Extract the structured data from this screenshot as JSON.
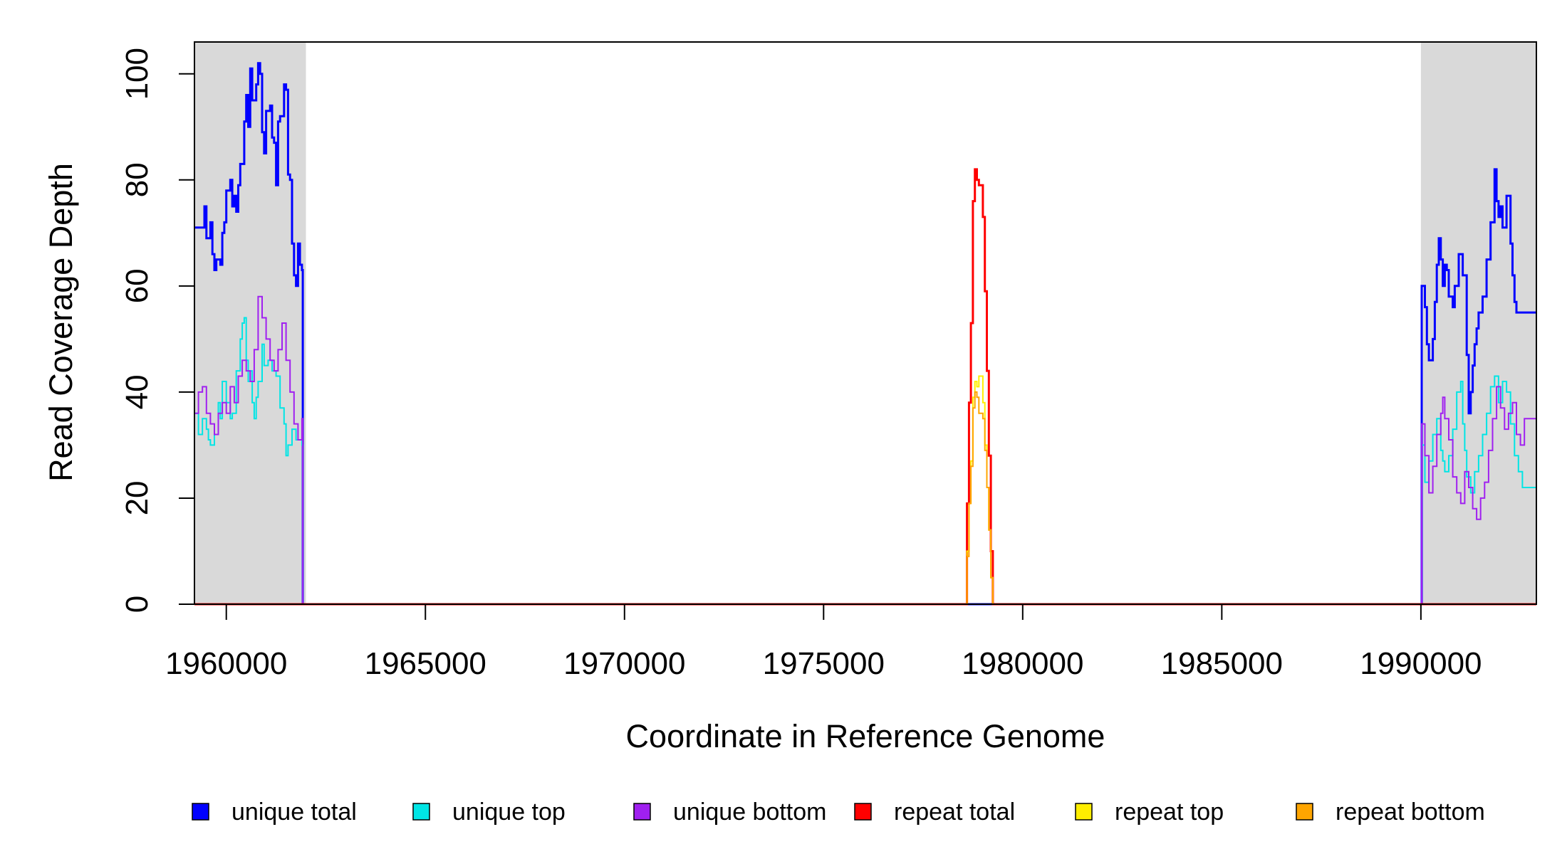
{
  "chart_data": {
    "type": "line",
    "step": true,
    "xlabel": "Coordinate in Reference Genome",
    "ylabel": "Read Coverage Depth",
    "xlim": [
      1959200,
      1992900
    ],
    "ylim": [
      0,
      106
    ],
    "x_ticks": [
      1960000,
      1965000,
      1970000,
      1975000,
      1980000,
      1985000,
      1990000
    ],
    "x_tick_labels": [
      "1960000",
      "1965000",
      "1970000",
      "1975000",
      "1980000",
      "1985000",
      "1990000"
    ],
    "y_ticks": [
      0,
      20,
      40,
      60,
      80,
      100
    ],
    "y_tick_labels": [
      "0",
      "20",
      "40",
      "60",
      "80",
      "100"
    ],
    "grid": false,
    "legend_position": "bottom",
    "shaded_regions": [
      {
        "x0": 1959200,
        "x1": 1962000,
        "color": "#d9d9d9"
      },
      {
        "x0": 1990000,
        "x1": 1992900,
        "color": "#d9d9d9"
      }
    ],
    "series": [
      {
        "name": "unique total",
        "color": "#0000ff",
        "width": 3,
        "points": [
          [
            1959200,
            71
          ],
          [
            1959350,
            71
          ],
          [
            1959450,
            75
          ],
          [
            1959500,
            69
          ],
          [
            1959600,
            72
          ],
          [
            1959650,
            66
          ],
          [
            1959700,
            63
          ],
          [
            1959750,
            65
          ],
          [
            1959850,
            64
          ],
          [
            1959900,
            70
          ],
          [
            1959950,
            72
          ],
          [
            1960000,
            78
          ],
          [
            1960100,
            80
          ],
          [
            1960150,
            75
          ],
          [
            1960200,
            77
          ],
          [
            1960250,
            74
          ],
          [
            1960300,
            79
          ],
          [
            1960350,
            83
          ],
          [
            1960450,
            91
          ],
          [
            1960500,
            96
          ],
          [
            1960550,
            90
          ],
          [
            1960600,
            101
          ],
          [
            1960650,
            95
          ],
          [
            1960750,
            98
          ],
          [
            1960800,
            102
          ],
          [
            1960850,
            100
          ],
          [
            1960900,
            89
          ],
          [
            1960950,
            85
          ],
          [
            1961000,
            93
          ],
          [
            1961100,
            94
          ],
          [
            1961150,
            88
          ],
          [
            1961200,
            87
          ],
          [
            1961250,
            79
          ],
          [
            1961300,
            91
          ],
          [
            1961350,
            92
          ],
          [
            1961450,
            98
          ],
          [
            1961500,
            97
          ],
          [
            1961550,
            81
          ],
          [
            1961600,
            80
          ],
          [
            1961650,
            68
          ],
          [
            1961700,
            62
          ],
          [
            1961750,
            60
          ],
          [
            1961800,
            68
          ],
          [
            1961850,
            64
          ],
          [
            1961900,
            63
          ],
          [
            1961920,
            0
          ],
          [
            1990000,
            0
          ],
          [
            1990020,
            60
          ],
          [
            1990100,
            56
          ],
          [
            1990150,
            49
          ],
          [
            1990200,
            46
          ],
          [
            1990300,
            50
          ],
          [
            1990350,
            57
          ],
          [
            1990400,
            64
          ],
          [
            1990450,
            69
          ],
          [
            1990500,
            65
          ],
          [
            1990550,
            60
          ],
          [
            1990600,
            64
          ],
          [
            1990650,
            63
          ],
          [
            1990700,
            58
          ],
          [
            1990800,
            56
          ],
          [
            1990850,
            60
          ],
          [
            1990950,
            66
          ],
          [
            1991050,
            62
          ],
          [
            1991150,
            47
          ],
          [
            1991200,
            36
          ],
          [
            1991250,
            40
          ],
          [
            1991300,
            45
          ],
          [
            1991350,
            49
          ],
          [
            1991400,
            52
          ],
          [
            1991450,
            55
          ],
          [
            1991550,
            58
          ],
          [
            1991650,
            65
          ],
          [
            1991750,
            72
          ],
          [
            1991850,
            82
          ],
          [
            1991900,
            76
          ],
          [
            1991950,
            73
          ],
          [
            1992000,
            75
          ],
          [
            1992050,
            71
          ],
          [
            1992150,
            77
          ],
          [
            1992250,
            68
          ],
          [
            1992300,
            62
          ],
          [
            1992350,
            57
          ],
          [
            1992400,
            55
          ],
          [
            1992900,
            55
          ]
        ]
      },
      {
        "name": "unique top",
        "color": "#00e5e5",
        "width": 2,
        "points": [
          [
            1959200,
            36
          ],
          [
            1959300,
            32
          ],
          [
            1959400,
            35
          ],
          [
            1959500,
            33
          ],
          [
            1959550,
            31
          ],
          [
            1959600,
            30
          ],
          [
            1959700,
            32
          ],
          [
            1959800,
            38
          ],
          [
            1959850,
            35
          ],
          [
            1959900,
            42
          ],
          [
            1960000,
            38
          ],
          [
            1960100,
            35
          ],
          [
            1960150,
            36
          ],
          [
            1960250,
            44
          ],
          [
            1960350,
            50
          ],
          [
            1960400,
            53
          ],
          [
            1960450,
            54
          ],
          [
            1960500,
            46
          ],
          [
            1960550,
            42
          ],
          [
            1960600,
            44
          ],
          [
            1960650,
            38
          ],
          [
            1960700,
            35
          ],
          [
            1960750,
            39
          ],
          [
            1960800,
            42
          ],
          [
            1960900,
            49
          ],
          [
            1960950,
            45
          ],
          [
            1961050,
            46
          ],
          [
            1961150,
            44
          ],
          [
            1961250,
            43
          ],
          [
            1961350,
            37
          ],
          [
            1961450,
            34
          ],
          [
            1961500,
            28
          ],
          [
            1961550,
            30
          ],
          [
            1961650,
            33
          ],
          [
            1961750,
            31
          ],
          [
            1961900,
            30
          ],
          [
            1961920,
            0
          ],
          [
            1990000,
            0
          ],
          [
            1990020,
            30
          ],
          [
            1990100,
            23
          ],
          [
            1990200,
            27
          ],
          [
            1990300,
            32
          ],
          [
            1990400,
            35
          ],
          [
            1990500,
            29
          ],
          [
            1990550,
            27
          ],
          [
            1990600,
            25
          ],
          [
            1990700,
            28
          ],
          [
            1990800,
            33
          ],
          [
            1990900,
            40
          ],
          [
            1991000,
            42
          ],
          [
            1991050,
            34
          ],
          [
            1991100,
            29
          ],
          [
            1991150,
            24
          ],
          [
            1991250,
            21
          ],
          [
            1991350,
            25
          ],
          [
            1991450,
            28
          ],
          [
            1991550,
            32
          ],
          [
            1991650,
            36
          ],
          [
            1991750,
            41
          ],
          [
            1991850,
            43
          ],
          [
            1991950,
            38
          ],
          [
            1992050,
            42
          ],
          [
            1992150,
            40
          ],
          [
            1992250,
            34
          ],
          [
            1992350,
            28
          ],
          [
            1992450,
            25
          ],
          [
            1992550,
            22
          ],
          [
            1992900,
            22
          ]
        ]
      },
      {
        "name": "unique bottom",
        "color": "#a020f0",
        "width": 2,
        "points": [
          [
            1959200,
            36
          ],
          [
            1959300,
            40
          ],
          [
            1959400,
            41
          ],
          [
            1959500,
            36
          ],
          [
            1959600,
            34
          ],
          [
            1959700,
            32
          ],
          [
            1959800,
            36
          ],
          [
            1959900,
            38
          ],
          [
            1960000,
            36
          ],
          [
            1960100,
            41
          ],
          [
            1960200,
            38
          ],
          [
            1960300,
            43
          ],
          [
            1960400,
            46
          ],
          [
            1960500,
            44
          ],
          [
            1960600,
            42
          ],
          [
            1960700,
            48
          ],
          [
            1960800,
            58
          ],
          [
            1960900,
            54
          ],
          [
            1961000,
            50
          ],
          [
            1961100,
            46
          ],
          [
            1961200,
            44
          ],
          [
            1961300,
            48
          ],
          [
            1961400,
            53
          ],
          [
            1961500,
            46
          ],
          [
            1961600,
            40
          ],
          [
            1961700,
            34
          ],
          [
            1961800,
            31
          ],
          [
            1961900,
            35
          ],
          [
            1961920,
            0
          ],
          [
            1990000,
            0
          ],
          [
            1990020,
            34
          ],
          [
            1990100,
            28
          ],
          [
            1990200,
            21
          ],
          [
            1990300,
            26
          ],
          [
            1990400,
            32
          ],
          [
            1990500,
            36
          ],
          [
            1990550,
            39
          ],
          [
            1990600,
            35
          ],
          [
            1990700,
            31
          ],
          [
            1990800,
            24
          ],
          [
            1990900,
            21
          ],
          [
            1991000,
            19
          ],
          [
            1991100,
            25
          ],
          [
            1991200,
            22
          ],
          [
            1991300,
            18
          ],
          [
            1991400,
            16
          ],
          [
            1991500,
            20
          ],
          [
            1991600,
            23
          ],
          [
            1991700,
            29
          ],
          [
            1991800,
            35
          ],
          [
            1991900,
            41
          ],
          [
            1992000,
            37
          ],
          [
            1992100,
            33
          ],
          [
            1992200,
            36
          ],
          [
            1992300,
            38
          ],
          [
            1992400,
            32
          ],
          [
            1992500,
            30
          ],
          [
            1992600,
            35
          ],
          [
            1992900,
            35
          ]
        ]
      },
      {
        "name": "repeat total",
        "color": "#ff0000",
        "width": 3,
        "points": [
          [
            1959200,
            0
          ],
          [
            1978580,
            0
          ],
          [
            1978600,
            19
          ],
          [
            1978650,
            38
          ],
          [
            1978700,
            53
          ],
          [
            1978750,
            76
          ],
          [
            1978800,
            82
          ],
          [
            1978850,
            80
          ],
          [
            1978900,
            79
          ],
          [
            1979000,
            73
          ],
          [
            1979050,
            59
          ],
          [
            1979100,
            44
          ],
          [
            1979150,
            28
          ],
          [
            1979200,
            10
          ],
          [
            1979250,
            0
          ],
          [
            1992900,
            0
          ]
        ]
      },
      {
        "name": "repeat top",
        "color": "#ffee00",
        "width": 2,
        "points": [
          [
            1959200,
            0
          ],
          [
            1978580,
            0
          ],
          [
            1978600,
            10
          ],
          [
            1978650,
            19
          ],
          [
            1978700,
            27
          ],
          [
            1978750,
            39
          ],
          [
            1978800,
            42
          ],
          [
            1978850,
            41
          ],
          [
            1978900,
            43
          ],
          [
            1979000,
            38
          ],
          [
            1979050,
            30
          ],
          [
            1979100,
            22
          ],
          [
            1979150,
            14
          ],
          [
            1979200,
            5
          ],
          [
            1979250,
            0
          ],
          [
            1992900,
            0
          ]
        ]
      },
      {
        "name": "repeat bottom",
        "color": "#ffa500",
        "width": 2,
        "points": [
          [
            1959200,
            0
          ],
          [
            1978580,
            0
          ],
          [
            1978600,
            9
          ],
          [
            1978650,
            19
          ],
          [
            1978700,
            26
          ],
          [
            1978750,
            37
          ],
          [
            1978800,
            40
          ],
          [
            1978850,
            39
          ],
          [
            1978900,
            36
          ],
          [
            1979000,
            35
          ],
          [
            1979050,
            29
          ],
          [
            1979100,
            22
          ],
          [
            1979150,
            14
          ],
          [
            1979200,
            5
          ],
          [
            1979250,
            0
          ],
          [
            1992900,
            0
          ]
        ]
      }
    ],
    "legend": [
      {
        "label": "unique total",
        "color": "#0000ff"
      },
      {
        "label": "unique top",
        "color": "#00e5e5"
      },
      {
        "label": "unique bottom",
        "color": "#a020f0"
      },
      {
        "label": "repeat total",
        "color": "#ff0000"
      },
      {
        "label": "repeat top",
        "color": "#ffee00"
      },
      {
        "label": "repeat bottom",
        "color": "#ffa500"
      }
    ]
  }
}
